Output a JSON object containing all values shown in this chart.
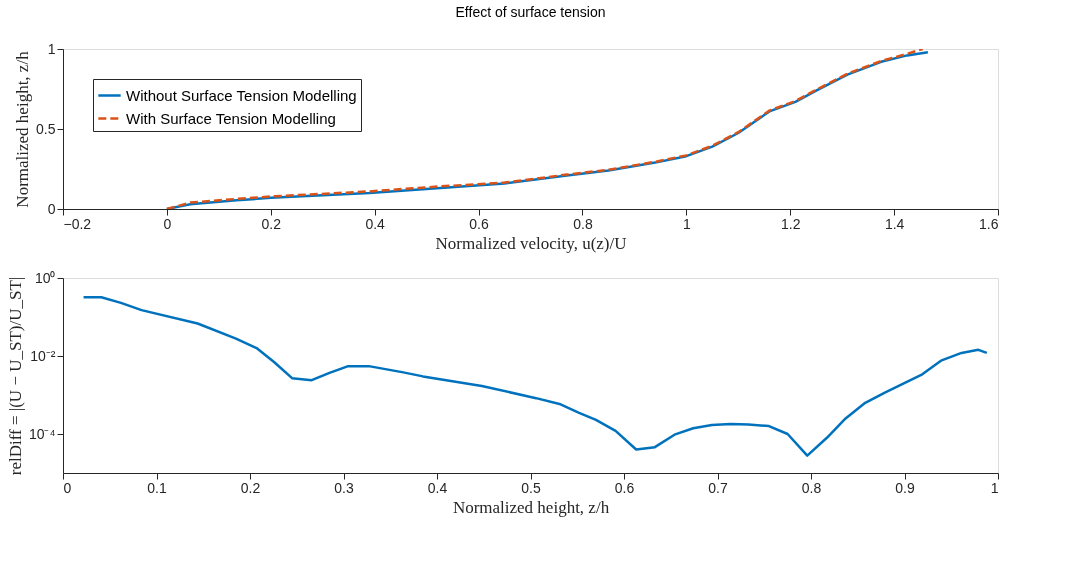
{
  "chart_data": [
    {
      "type": "line",
      "title": "Effect of surface tension",
      "xlabel": "Normalized velocity, u(z)/U",
      "ylabel": "Normalized height, z/h",
      "xlim": [
        -0.2,
        1.6
      ],
      "xticks": [
        -0.2,
        0,
        0.2,
        0.4,
        0.6,
        0.8,
        1,
        1.2,
        1.4,
        1.6
      ],
      "ylim": [
        0,
        1
      ],
      "yticks": [
        0,
        0.5,
        1
      ],
      "grid": false,
      "legend": "top left",
      "series": [
        {
          "name": "Without Surface Tension Modelling",
          "color": "#0072bd",
          "line_style": "solid",
          "x": [
            0,
            0.045,
            0.134,
            0.2,
            0.39,
            0.52,
            0.65,
            0.77,
            0.85,
            0.94,
            1.0,
            1.05,
            1.1,
            1.16,
            1.21,
            1.25,
            1.31,
            1.375,
            1.425,
            1.465
          ],
          "values": [
            0,
            0.03,
            0.054,
            0.07,
            0.1,
            0.13,
            0.16,
            0.21,
            0.24,
            0.29,
            0.33,
            0.39,
            0.475,
            0.61,
            0.67,
            0.74,
            0.84,
            0.92,
            0.96,
            0.98
          ]
        },
        {
          "name": "With Surface Tension Modelling",
          "color": "#d95319",
          "line_style": "dashed",
          "x": [
            0,
            0.045,
            0.134,
            0.2,
            0.39,
            0.52,
            0.65,
            0.77,
            0.85,
            0.94,
            1.0,
            1.05,
            1.1,
            1.16,
            1.21,
            1.25,
            1.31,
            1.375,
            1.425,
            1.455
          ],
          "values": [
            0,
            0.04,
            0.063,
            0.078,
            0.11,
            0.14,
            0.165,
            0.215,
            0.245,
            0.295,
            0.335,
            0.395,
            0.48,
            0.615,
            0.675,
            0.745,
            0.845,
            0.925,
            0.97,
            1.0
          ]
        }
      ]
    },
    {
      "type": "line",
      "xlabel": "Normalized height, z/h",
      "ylabel": "relDiff = |(U − U_ST)/U_ST|",
      "log": "y",
      "xlim": [
        0,
        1
      ],
      "xticks": [
        0,
        0.1,
        0.2,
        0.3,
        0.4,
        0.5,
        0.6,
        0.7,
        0.8,
        0.9,
        1
      ],
      "ylim": [
        1e-05,
        1
      ],
      "yticks": [
        {
          "value": 0.0001,
          "label": "10⁻⁴"
        },
        {
          "value": 0.01,
          "label": "10⁻²"
        },
        {
          "value": 1,
          "label": "10⁰"
        }
      ],
      "grid": false,
      "legend": false,
      "series": [
        {
          "color": "#0072bd",
          "line_style": "solid",
          "x": [
            0.022,
            0.041,
            0.062,
            0.084,
            0.144,
            0.185,
            0.207,
            0.226,
            0.245,
            0.266,
            0.285,
            0.305,
            0.327,
            0.364,
            0.385,
            0.448,
            0.506,
            0.531,
            0.552,
            0.57,
            0.591,
            0.613,
            0.633,
            0.654,
            0.674,
            0.694,
            0.714,
            0.733,
            0.755,
            0.775,
            0.796,
            0.817,
            0.837,
            0.858,
            0.879,
            0.919,
            0.939,
            0.961,
            0.979,
            0.988
          ],
          "values": [
            0.32,
            0.32,
            0.23,
            0.15,
            0.068,
            0.028,
            0.016,
            0.0069,
            0.0027,
            0.0024,
            0.0037,
            0.0055,
            0.0055,
            0.0038,
            0.003,
            0.0017,
            0.00083,
            0.00059,
            0.00035,
            0.00023,
            0.00012,
            4e-05,
            4.6e-05,
            9.6e-05,
            0.00014,
            0.00017,
            0.00018,
            0.000175,
            0.00016,
            0.0001,
            2.8e-05,
            8e-05,
            0.00025,
            0.00063,
            0.00115,
            0.0034,
            0.0076,
            0.012,
            0.0144,
            0.012
          ]
        }
      ]
    }
  ]
}
